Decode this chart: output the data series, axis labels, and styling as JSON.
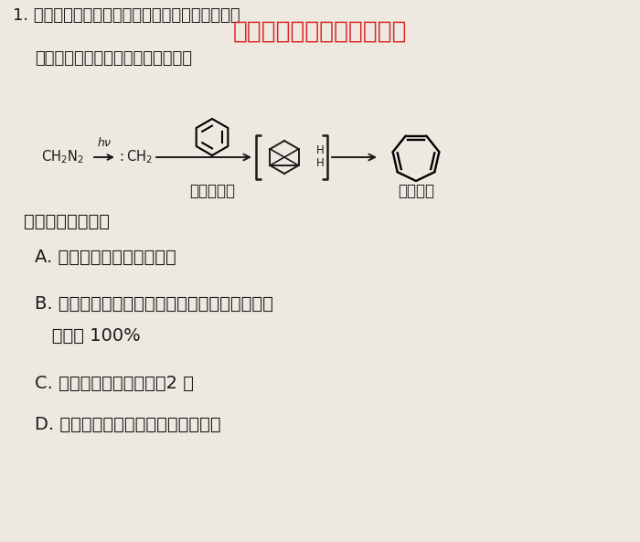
{
  "bg_color": "#ede8e0",
  "title_line1": "1. 环庚三烯广泛用作有机金属化学中的配体以及有",
  "title_line2": "机合成中间体，合成路线如图所示：",
  "watermark": "微信公众号关注：趣找答案",
  "reaction_label1": "亚甲基卡宾",
  "reaction_label2": "环庚三烯",
  "question_stem": "下列说法正确的是",
  "option_A": "A. 环庚三烯与乙烯是同系物",
  "option_B1": "B. 苯与亚甲基卡宾发生反应得环庚三烯的原子利",
  "option_B2": "   用率为 100%",
  "option_C": "C. 环庚三烯的一氯代物有2 种",
  "option_D": "D. 环庚三烯分子中所有原子都共平面",
  "text_color": "#1a1a1a",
  "watermark_color": "#dd2222",
  "font_size_main": 14,
  "font_size_options": 15
}
